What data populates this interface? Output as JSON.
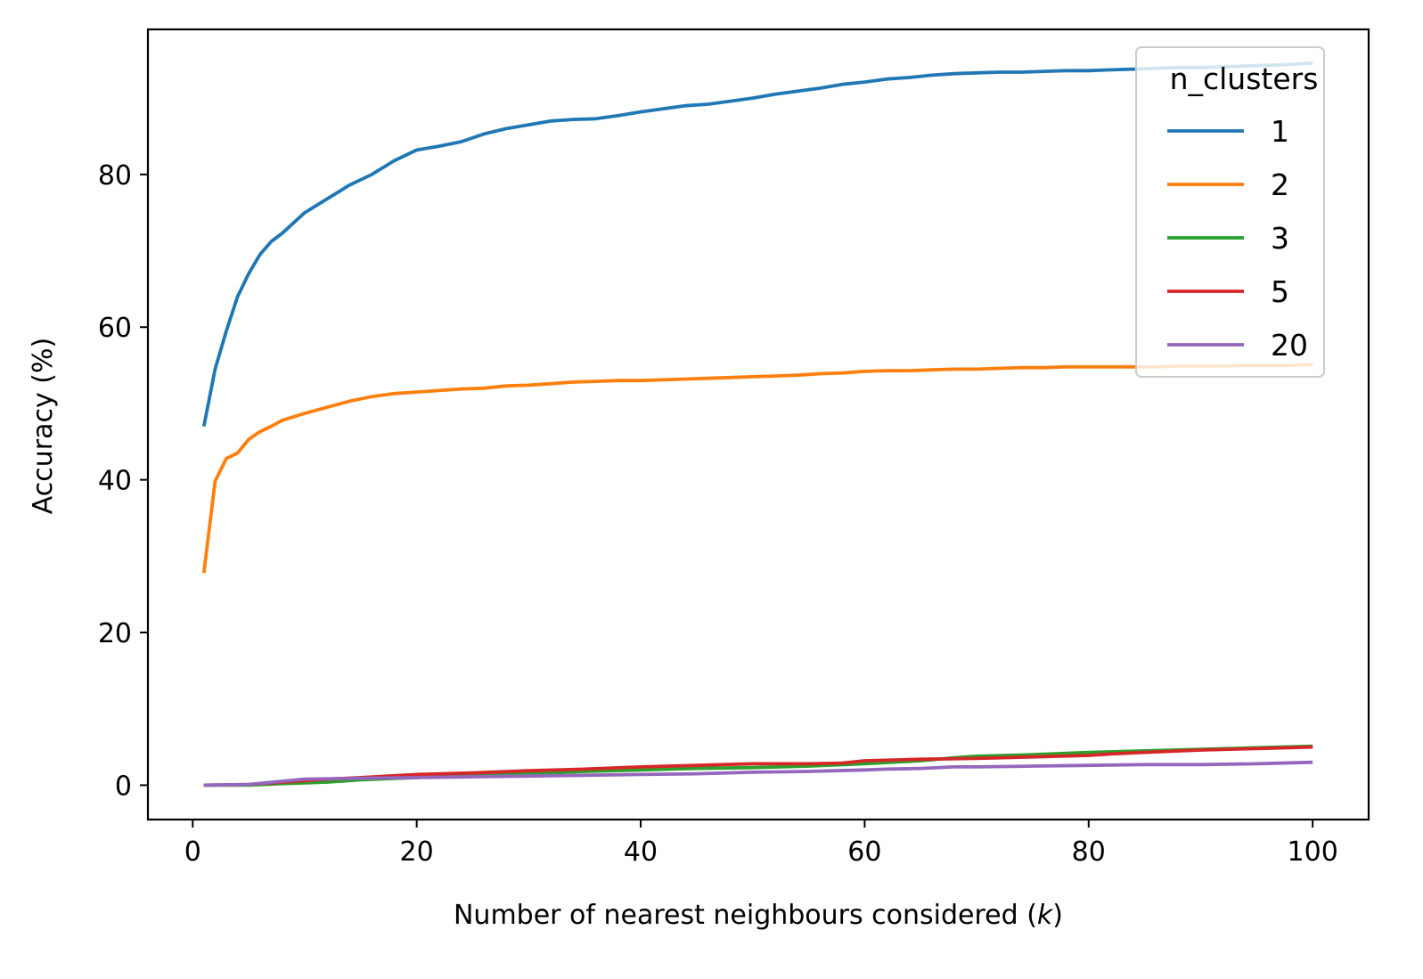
{
  "chart_data": {
    "type": "line",
    "title": "",
    "xlabel_prefix": "Number of nearest neighbours considered (",
    "xlabel_var": "k",
    "xlabel_suffix": ")",
    "ylabel": "Accuracy (%)",
    "xlim": [
      -4,
      105
    ],
    "ylim": [
      -4.5,
      99
    ],
    "xticks": [
      0,
      20,
      40,
      60,
      80,
      100
    ],
    "yticks": [
      0,
      20,
      40,
      60,
      80
    ],
    "grid": false,
    "legend": {
      "title": "n_clusters",
      "position": "top-right"
    },
    "series": [
      {
        "name": "1",
        "color": "#1f77b4",
        "points": [
          [
            1,
            47
          ],
          [
            2,
            54.5
          ],
          [
            3,
            59.5
          ],
          [
            4,
            64
          ],
          [
            5,
            67
          ],
          [
            6,
            69.5
          ],
          [
            7,
            71.2
          ],
          [
            8,
            72.3
          ],
          [
            10,
            75
          ],
          [
            12,
            76.8
          ],
          [
            14,
            78.6
          ],
          [
            16,
            80
          ],
          [
            18,
            81.8
          ],
          [
            20,
            83.2
          ],
          [
            22,
            83.7
          ],
          [
            24,
            84.3
          ],
          [
            26,
            85.3
          ],
          [
            28,
            86
          ],
          [
            30,
            86.5
          ],
          [
            32,
            87
          ],
          [
            34,
            87.2
          ],
          [
            36,
            87.3
          ],
          [
            38,
            87.7
          ],
          [
            40,
            88.2
          ],
          [
            42,
            88.6
          ],
          [
            44,
            89
          ],
          [
            46,
            89.2
          ],
          [
            48,
            89.6
          ],
          [
            50,
            90
          ],
          [
            52,
            90.5
          ],
          [
            54,
            90.9
          ],
          [
            56,
            91.3
          ],
          [
            58,
            91.8
          ],
          [
            60,
            92.1
          ],
          [
            62,
            92.5
          ],
          [
            64,
            92.7
          ],
          [
            66,
            93
          ],
          [
            68,
            93.2
          ],
          [
            70,
            93.3
          ],
          [
            72,
            93.4
          ],
          [
            74,
            93.4
          ],
          [
            76,
            93.5
          ],
          [
            78,
            93.6
          ],
          [
            80,
            93.6
          ],
          [
            82,
            93.7
          ],
          [
            84,
            93.8
          ],
          [
            86,
            93.9
          ],
          [
            88,
            94
          ],
          [
            90,
            94
          ],
          [
            92,
            94.1
          ],
          [
            94,
            94.2
          ],
          [
            96,
            94.3
          ],
          [
            98,
            94.4
          ],
          [
            100,
            94.6
          ]
        ]
      },
      {
        "name": "2",
        "color": "#ff7f0e",
        "points": [
          [
            1,
            27.8
          ],
          [
            2,
            39.8
          ],
          [
            3,
            42.8
          ],
          [
            4,
            43.5
          ],
          [
            5,
            45.3
          ],
          [
            6,
            46.3
          ],
          [
            7,
            47
          ],
          [
            8,
            47.8
          ],
          [
            10,
            48.7
          ],
          [
            12,
            49.5
          ],
          [
            14,
            50.3
          ],
          [
            16,
            50.9
          ],
          [
            18,
            51.3
          ],
          [
            20,
            51.5
          ],
          [
            22,
            51.7
          ],
          [
            24,
            51.9
          ],
          [
            26,
            52
          ],
          [
            28,
            52.3
          ],
          [
            30,
            52.4
          ],
          [
            32,
            52.6
          ],
          [
            34,
            52.8
          ],
          [
            36,
            52.9
          ],
          [
            38,
            53
          ],
          [
            40,
            53
          ],
          [
            42,
            53.1
          ],
          [
            44,
            53.2
          ],
          [
            46,
            53.3
          ],
          [
            48,
            53.4
          ],
          [
            50,
            53.5
          ],
          [
            52,
            53.6
          ],
          [
            54,
            53.7
          ],
          [
            56,
            53.9
          ],
          [
            58,
            54
          ],
          [
            60,
            54.2
          ],
          [
            62,
            54.3
          ],
          [
            64,
            54.3
          ],
          [
            66,
            54.4
          ],
          [
            68,
            54.5
          ],
          [
            70,
            54.5
          ],
          [
            72,
            54.6
          ],
          [
            74,
            54.7
          ],
          [
            76,
            54.7
          ],
          [
            78,
            54.8
          ],
          [
            80,
            54.8
          ],
          [
            82,
            54.8
          ],
          [
            84,
            54.8
          ],
          [
            86,
            54.8
          ],
          [
            88,
            54.9
          ],
          [
            90,
            54.9
          ],
          [
            92,
            54.9
          ],
          [
            94,
            55
          ],
          [
            96,
            55
          ],
          [
            98,
            55
          ],
          [
            100,
            55.1
          ]
        ]
      },
      {
        "name": "3",
        "color": "#2ca02c",
        "points": [
          [
            1,
            0
          ],
          [
            5,
            0
          ],
          [
            8,
            0.2
          ],
          [
            10,
            0.3
          ],
          [
            12,
            0.4
          ],
          [
            15,
            0.7
          ],
          [
            20,
            1
          ],
          [
            25,
            1.3
          ],
          [
            30,
            1.5
          ],
          [
            35,
            1.8
          ],
          [
            40,
            2
          ],
          [
            45,
            2.2
          ],
          [
            50,
            2.3
          ],
          [
            55,
            2.5
          ],
          [
            60,
            2.8
          ],
          [
            65,
            3.2
          ],
          [
            68,
            3.6
          ],
          [
            70,
            3.8
          ],
          [
            75,
            4
          ],
          [
            80,
            4.3
          ],
          [
            85,
            4.5
          ],
          [
            90,
            4.7
          ],
          [
            95,
            4.9
          ],
          [
            100,
            5.1
          ]
        ]
      },
      {
        "name": "5",
        "color": "#d62728",
        "points": [
          [
            1,
            0
          ],
          [
            5,
            0.1
          ],
          [
            8,
            0.4
          ],
          [
            10,
            0.6
          ],
          [
            12,
            0.8
          ],
          [
            15,
            1
          ],
          [
            20,
            1.4
          ],
          [
            25,
            1.6
          ],
          [
            30,
            1.9
          ],
          [
            35,
            2.1
          ],
          [
            40,
            2.4
          ],
          [
            45,
            2.6
          ],
          [
            50,
            2.8
          ],
          [
            55,
            2.8
          ],
          [
            58,
            2.9
          ],
          [
            60,
            3.2
          ],
          [
            65,
            3.4
          ],
          [
            70,
            3.5
          ],
          [
            75,
            3.7
          ],
          [
            80,
            3.9
          ],
          [
            82,
            4.1
          ],
          [
            85,
            4.3
          ],
          [
            90,
            4.6
          ],
          [
            95,
            4.8
          ],
          [
            100,
            5
          ]
        ]
      },
      {
        "name": "20",
        "color": "#9467bd",
        "points": [
          [
            1,
            0
          ],
          [
            5,
            0.1
          ],
          [
            10,
            0.8
          ],
          [
            15,
            0.9
          ],
          [
            20,
            1
          ],
          [
            25,
            1.1
          ],
          [
            30,
            1.2
          ],
          [
            35,
            1.3
          ],
          [
            40,
            1.4
          ],
          [
            45,
            1.5
          ],
          [
            50,
            1.7
          ],
          [
            55,
            1.8
          ],
          [
            60,
            2
          ],
          [
            62,
            2.1
          ],
          [
            65,
            2.2
          ],
          [
            68,
            2.4
          ],
          [
            70,
            2.4
          ],
          [
            75,
            2.5
          ],
          [
            80,
            2.6
          ],
          [
            85,
            2.7
          ],
          [
            90,
            2.7
          ],
          [
            95,
            2.8
          ],
          [
            100,
            3
          ]
        ]
      }
    ]
  }
}
